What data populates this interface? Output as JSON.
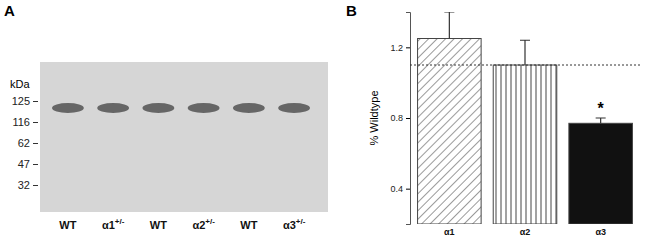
{
  "chart_data": [
    {
      "type": "blot",
      "title": "A",
      "y_label": "kDa",
      "markers": [
        125,
        116,
        62,
        47,
        32
      ],
      "categories": [
        "WT",
        "α1+/-",
        "WT",
        "α2+/-",
        "WT",
        "α3+/-"
      ],
      "color": "#4a4a4a"
    },
    {
      "type": "bar",
      "title": "B",
      "y_label": "% Wildtype",
      "categories": [
        "α1",
        "α2",
        "α3"
      ],
      "values": [
        1.25,
        1.1,
        0.77
      ],
      "errors": [
        0.15,
        0.14,
        0.03
      ],
      "colors": [
        "#ffffff",
        "#ffffff",
        "#111111"
      ],
      "ylim": [
        0.2,
        1.4
      ],
      "yticks": [
        0.4,
        0.8,
        1.2
      ],
      "reference": 1.1,
      "annotations": [
        {
          "text": "*",
          "category": "α3"
        }
      ]
    }
  ]
}
